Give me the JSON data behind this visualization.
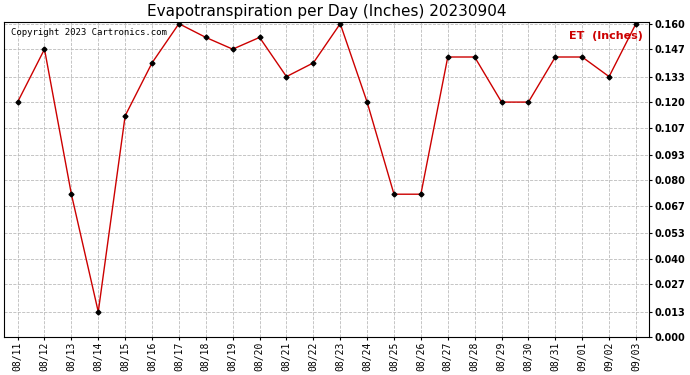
{
  "title": "Evapotranspiration per Day (Inches) 20230904",
  "copyright": "Copyright 2023 Cartronics.com",
  "legend_label": "ET  (Inches)",
  "dates": [
    "08/11",
    "08/12",
    "08/13",
    "08/14",
    "08/15",
    "08/16",
    "08/17",
    "08/18",
    "08/19",
    "08/20",
    "08/21",
    "08/22",
    "08/23",
    "08/24",
    "08/25",
    "08/26",
    "08/27",
    "08/28",
    "08/29",
    "08/30",
    "08/31",
    "09/01",
    "09/02",
    "09/03"
  ],
  "values": [
    0.12,
    0.147,
    0.073,
    0.013,
    0.113,
    0.14,
    0.16,
    0.153,
    0.147,
    0.153,
    0.133,
    0.14,
    0.16,
    0.12,
    0.073,
    0.073,
    0.143,
    0.143,
    0.12,
    0.12,
    0.143,
    0.143,
    0.133,
    0.16
  ],
  "ylim": [
    0.0,
    0.16
  ],
  "yticks": [
    0.0,
    0.013,
    0.027,
    0.04,
    0.053,
    0.067,
    0.08,
    0.093,
    0.107,
    0.12,
    0.133,
    0.147,
    0.16
  ],
  "line_color": "#cc0000",
  "marker": "D",
  "marker_size": 2.5,
  "background_color": "#ffffff",
  "grid_color": "#bbbbbb",
  "title_fontsize": 11,
  "tick_fontsize": 7,
  "ytick_fontsize": 7,
  "legend_color": "#cc0000",
  "copyright_fontsize": 6.5
}
